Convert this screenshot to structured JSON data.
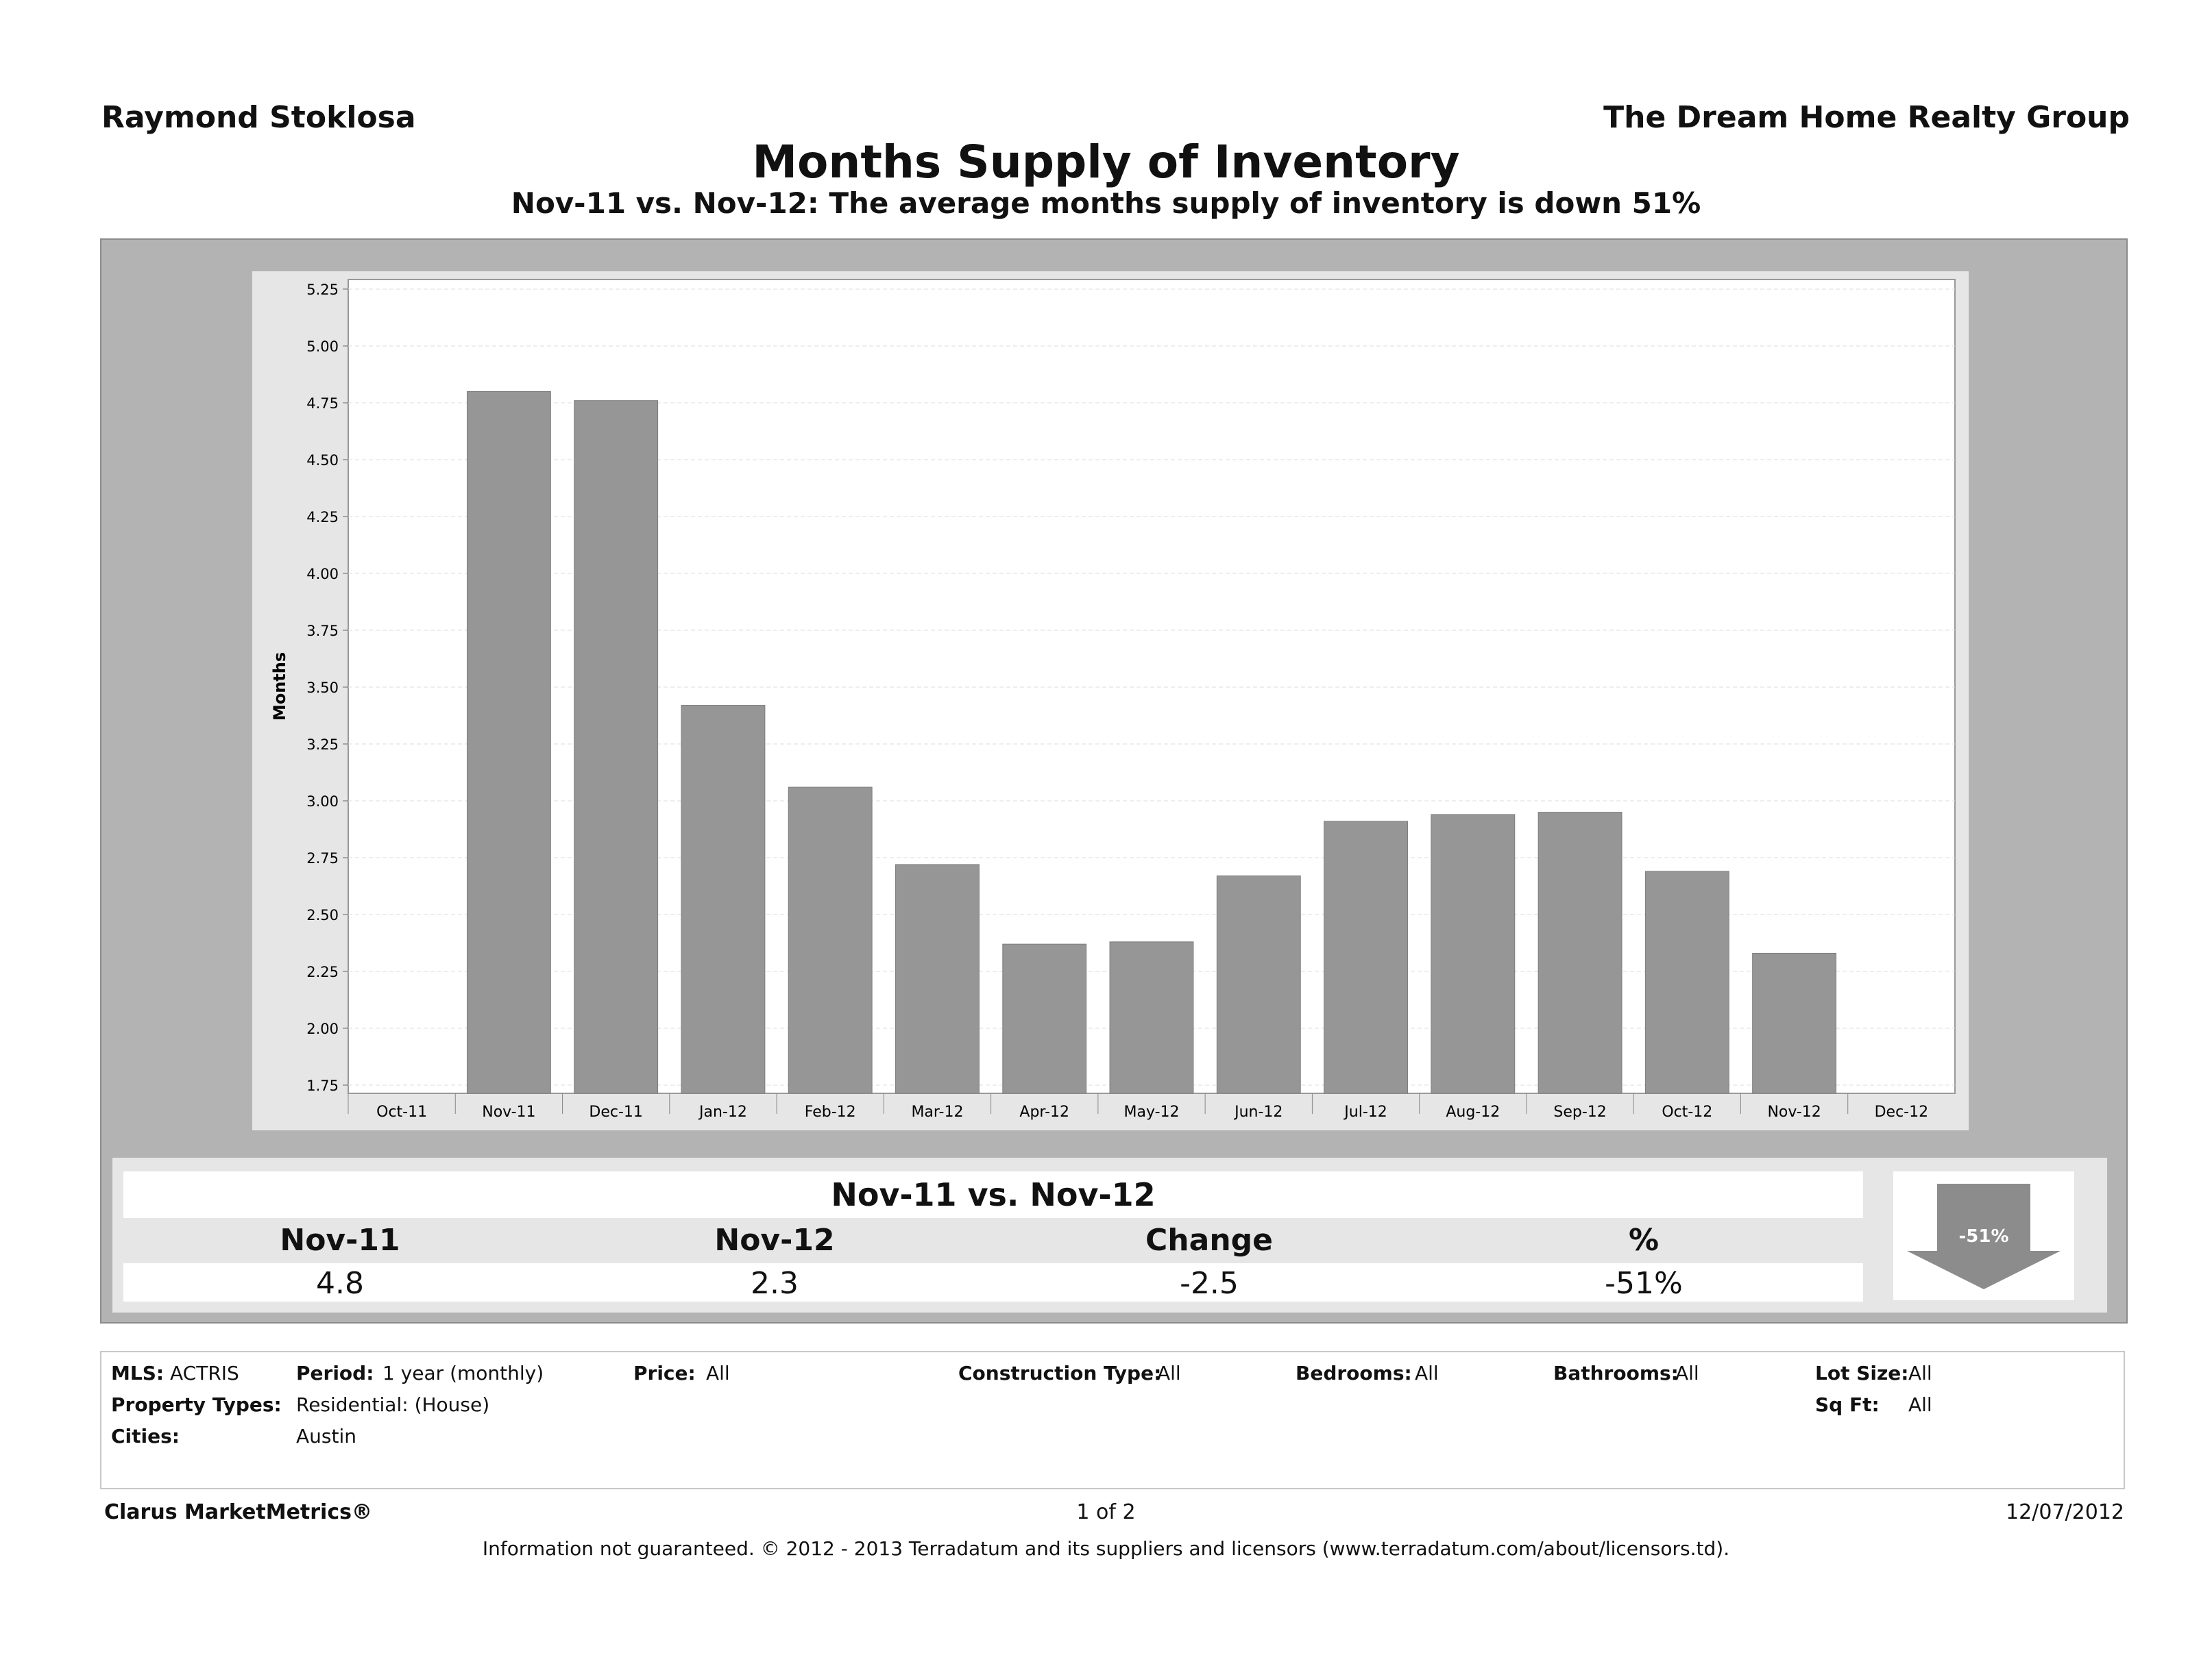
{
  "header": {
    "agent": "Raymond Stoklosa",
    "company": "The Dream Home Realty Group",
    "title": "Months Supply of Inventory",
    "subtitle": "Nov-11 vs. Nov-12:  The average months supply of inventory is down 51%"
  },
  "chart_data": {
    "type": "bar",
    "ylabel": "Months",
    "categories": [
      "Oct-11",
      "Nov-11",
      "Dec-11",
      "Jan-12",
      "Feb-12",
      "Mar-12",
      "Apr-12",
      "May-12",
      "Jun-12",
      "Jul-12",
      "Aug-12",
      "Sep-12",
      "Oct-12",
      "Nov-12",
      "Dec-12"
    ],
    "values": [
      null,
      4.8,
      4.76,
      3.42,
      3.06,
      2.72,
      2.37,
      2.38,
      2.67,
      2.91,
      2.94,
      2.95,
      2.69,
      2.33,
      null
    ],
    "ylim": [
      1.75,
      5.25
    ],
    "yticks": [
      "1.75",
      "2.00",
      "2.25",
      "2.50",
      "2.75",
      "3.00",
      "3.25",
      "3.50",
      "3.75",
      "4.00",
      "4.25",
      "4.50",
      "4.75",
      "5.00",
      "5.25"
    ],
    "grid": true,
    "bar_color": "#969696"
  },
  "summary": {
    "heading": "Nov-11 vs. Nov-12",
    "columns": [
      {
        "label": "Nov-11",
        "value": "4.8"
      },
      {
        "label": "Nov-12",
        "value": "2.3"
      },
      {
        "label": "Change",
        "value": "-2.5"
      },
      {
        "label": "%",
        "value": "-51%"
      }
    ],
    "arrow_label": "-51%"
  },
  "criteria": {
    "mls_label": "MLS:",
    "mls_value": "ACTRIS",
    "period_label": "Period:",
    "period_value": "1 year (monthly)",
    "price_label": "Price:",
    "price_value": "All",
    "construction_label": "Construction Type:",
    "construction_value": "All",
    "bedrooms_label": "Bedrooms:",
    "bedrooms_value": "All",
    "bathrooms_label": "Bathrooms:",
    "bathrooms_value": "All",
    "lot_label": "Lot Size:",
    "lot_value": "All",
    "property_label": "Property Types:",
    "property_value": "Residential: (House)",
    "sqft_label": "Sq Ft:",
    "sqft_value": "All",
    "cities_label": "Cities:",
    "cities_value": "Austin"
  },
  "footer": {
    "brand": "Clarus MarketMetrics®",
    "page": "1 of 2",
    "date": "12/07/2012",
    "disclaimer": "Information not guaranteed.  © 2012 - 2013 Terradatum and its suppliers and licensors (www.terradatum.com/about/licensors.td)."
  }
}
